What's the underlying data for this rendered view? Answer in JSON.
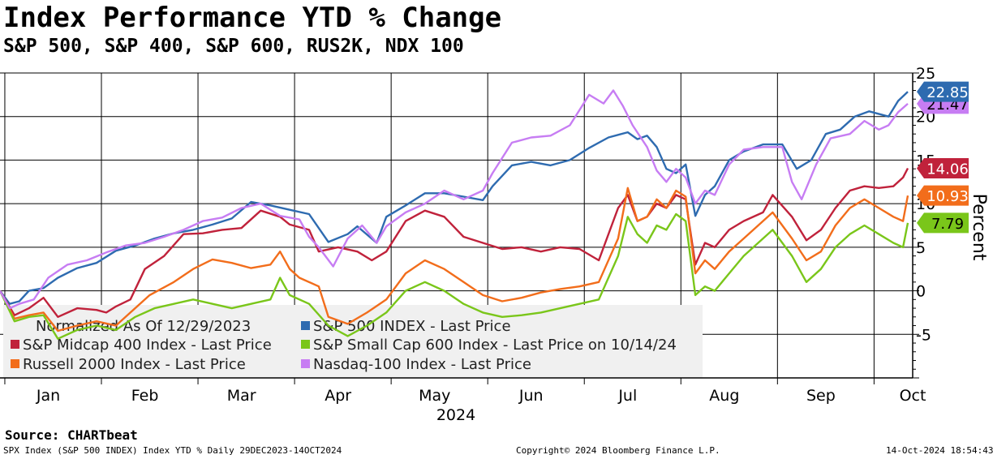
{
  "header": {
    "title": "Index Performance YTD % Change",
    "subtitle": "S&P 500, S&P 400, S&P 600, RUS2K, NDX 100"
  },
  "footer": {
    "source": "Source: CHARTbeat",
    "left": "SPX Index (S&P 500 INDEX) Index YTD %  Daily 29DEC2023-14OCT2024",
    "center": "Copyright© 2024 Bloomberg Finance L.P.",
    "right": "14-Oct-2024 18:54:43"
  },
  "chart_data": {
    "type": "line",
    "title": "Index Performance YTD % Change",
    "ylabel": "Percent",
    "xlabel": "2024",
    "ylim": [
      -10,
      25
    ],
    "yticks": [
      -5,
      0,
      5,
      10,
      15,
      20,
      25
    ],
    "ytick_labels": [
      "-5",
      "0",
      "5",
      "10",
      "15",
      "20",
      "25"
    ],
    "xlim": [
      0,
      9.45
    ],
    "xticks": [
      {
        "label": "Jan",
        "pos": 0.5
      },
      {
        "label": "Feb",
        "pos": 1.5
      },
      {
        "label": "Mar",
        "pos": 2.5
      },
      {
        "label": "Apr",
        "pos": 3.5
      },
      {
        "label": "May",
        "pos": 4.5
      },
      {
        "label": "Jun",
        "pos": 5.5
      },
      {
        "label": "Jul",
        "pos": 6.5
      },
      {
        "label": "Aug",
        "pos": 7.5
      },
      {
        "label": "Sep",
        "pos": 8.5
      },
      {
        "label": "Oct",
        "pos": 9.45
      }
    ],
    "grid": true,
    "legend_header": "Normalized As Of 12/29/2023",
    "legend_position": "bottom-left",
    "series": [
      {
        "name": "S&P 500 INDEX - Last Price",
        "color": "#2e6bb0",
        "last": "22.85",
        "points": [
          [
            0,
            0
          ],
          [
            0.1,
            -1.5
          ],
          [
            0.2,
            -1.2
          ],
          [
            0.3,
            0
          ],
          [
            0.45,
            0.3
          ],
          [
            0.6,
            1.5
          ],
          [
            0.8,
            2.6
          ],
          [
            1,
            3.2
          ],
          [
            1.2,
            4.6
          ],
          [
            1.4,
            5.2
          ],
          [
            1.6,
            6.0
          ],
          [
            1.8,
            6.6
          ],
          [
            2,
            7.0
          ],
          [
            2.2,
            7.6
          ],
          [
            2.4,
            8.3
          ],
          [
            2.6,
            10.2
          ],
          [
            2.8,
            9.8
          ],
          [
            3,
            9.3
          ],
          [
            3.2,
            8.8
          ],
          [
            3.4,
            5.6
          ],
          [
            3.6,
            6.5
          ],
          [
            3.7,
            7.4
          ],
          [
            3.9,
            5.5
          ],
          [
            4,
            8.5
          ],
          [
            4.2,
            9.8
          ],
          [
            4.4,
            11.2
          ],
          [
            4.6,
            11.2
          ],
          [
            4.8,
            10.8
          ],
          [
            5,
            10.4
          ],
          [
            5.1,
            12.0
          ],
          [
            5.3,
            14.4
          ],
          [
            5.5,
            14.8
          ],
          [
            5.7,
            14.4
          ],
          [
            5.9,
            15.0
          ],
          [
            6.1,
            16.4
          ],
          [
            6.3,
            17.6
          ],
          [
            6.5,
            18.2
          ],
          [
            6.6,
            17.4
          ],
          [
            6.7,
            17.8
          ],
          [
            6.8,
            16.5
          ],
          [
            6.9,
            14.0
          ],
          [
            7,
            13.5
          ],
          [
            7.1,
            14.5
          ],
          [
            7.2,
            8.6
          ],
          [
            7.3,
            11.0
          ],
          [
            7.4,
            12.0
          ],
          [
            7.55,
            15.0
          ],
          [
            7.7,
            16.0
          ],
          [
            7.9,
            16.8
          ],
          [
            8.1,
            16.8
          ],
          [
            8.25,
            14.0
          ],
          [
            8.4,
            15.0
          ],
          [
            8.55,
            18.0
          ],
          [
            8.7,
            18.5
          ],
          [
            8.85,
            20.0
          ],
          [
            9.0,
            20.6
          ],
          [
            9.2,
            20.0
          ],
          [
            9.3,
            21.8
          ],
          [
            9.4,
            22.85
          ]
        ]
      },
      {
        "name": "S&P Midcap 400 Index - Last Price",
        "color": "#c0223b",
        "last": "14.06",
        "points": [
          [
            0,
            0
          ],
          [
            0.15,
            -2.8
          ],
          [
            0.3,
            -2.0
          ],
          [
            0.45,
            -0.8
          ],
          [
            0.6,
            -3.0
          ],
          [
            0.8,
            -2.0
          ],
          [
            1.0,
            -2.2
          ],
          [
            1.1,
            -2.5
          ],
          [
            1.2,
            -1.8
          ],
          [
            1.35,
            -1.0
          ],
          [
            1.5,
            2.5
          ],
          [
            1.7,
            4.0
          ],
          [
            1.9,
            6.5
          ],
          [
            2.1,
            6.6
          ],
          [
            2.3,
            7.0
          ],
          [
            2.5,
            7.2
          ],
          [
            2.7,
            9.2
          ],
          [
            2.9,
            8.5
          ],
          [
            3.0,
            7.6
          ],
          [
            3.2,
            7.0
          ],
          [
            3.3,
            4.5
          ],
          [
            3.5,
            5.0
          ],
          [
            3.7,
            4.5
          ],
          [
            3.85,
            3.5
          ],
          [
            4.0,
            4.5
          ],
          [
            4.2,
            8.0
          ],
          [
            4.4,
            9.2
          ],
          [
            4.6,
            8.5
          ],
          [
            4.8,
            6.2
          ],
          [
            5,
            5.5
          ],
          [
            5.2,
            4.8
          ],
          [
            5.4,
            5.0
          ],
          [
            5.6,
            4.5
          ],
          [
            5.8,
            5.0
          ],
          [
            6.0,
            4.8
          ],
          [
            6.2,
            3.5
          ],
          [
            6.4,
            9.5
          ],
          [
            6.5,
            11.0
          ],
          [
            6.6,
            8.0
          ],
          [
            6.7,
            8.5
          ],
          [
            6.8,
            10.0
          ],
          [
            6.9,
            9.5
          ],
          [
            7.0,
            11.0
          ],
          [
            7.1,
            10.5
          ],
          [
            7.2,
            3.0
          ],
          [
            7.3,
            5.5
          ],
          [
            7.4,
            5.0
          ],
          [
            7.55,
            7.0
          ],
          [
            7.7,
            8.0
          ],
          [
            7.9,
            9.0
          ],
          [
            8.0,
            11.0
          ],
          [
            8.2,
            8.5
          ],
          [
            8.35,
            5.8
          ],
          [
            8.5,
            7.0
          ],
          [
            8.65,
            9.5
          ],
          [
            8.8,
            11.5
          ],
          [
            8.95,
            12.0
          ],
          [
            9.1,
            11.8
          ],
          [
            9.25,
            12.0
          ],
          [
            9.35,
            13.0
          ],
          [
            9.4,
            14.06
          ]
        ]
      },
      {
        "name": "Russell 2000 Index - Last Price",
        "color": "#f26d1b",
        "last": "10.93",
        "points": [
          [
            0,
            0
          ],
          [
            0.15,
            -3.2
          ],
          [
            0.3,
            -2.8
          ],
          [
            0.45,
            -2.5
          ],
          [
            0.6,
            -4.6
          ],
          [
            0.8,
            -4.0
          ],
          [
            1.0,
            -3.5
          ],
          [
            1.2,
            -4.0
          ],
          [
            1.35,
            -2.5
          ],
          [
            1.55,
            -0.5
          ],
          [
            1.8,
            1.0
          ],
          [
            2.0,
            2.5
          ],
          [
            2.2,
            3.6
          ],
          [
            2.4,
            3.2
          ],
          [
            2.6,
            2.6
          ],
          [
            2.8,
            3.0
          ],
          [
            2.9,
            4.5
          ],
          [
            3.0,
            2.5
          ],
          [
            3.1,
            1.5
          ],
          [
            3.3,
            0.5
          ],
          [
            3.4,
            -3.0
          ],
          [
            3.6,
            -3.8
          ],
          [
            3.8,
            -2.5
          ],
          [
            4.0,
            -1.0
          ],
          [
            4.2,
            2.0
          ],
          [
            4.4,
            3.5
          ],
          [
            4.6,
            2.5
          ],
          [
            4.8,
            1.0
          ],
          [
            5.0,
            -0.5
          ],
          [
            5.2,
            -1.2
          ],
          [
            5.4,
            -0.8
          ],
          [
            5.6,
            -0.2
          ],
          [
            5.8,
            0.2
          ],
          [
            6.0,
            0.5
          ],
          [
            6.2,
            1.0
          ],
          [
            6.4,
            6.0
          ],
          [
            6.5,
            11.8
          ],
          [
            6.6,
            8.0
          ],
          [
            6.7,
            8.5
          ],
          [
            6.8,
            10.5
          ],
          [
            6.9,
            9.5
          ],
          [
            7.0,
            11.5
          ],
          [
            7.1,
            10.8
          ],
          [
            7.2,
            2.0
          ],
          [
            7.3,
            3.5
          ],
          [
            7.4,
            2.5
          ],
          [
            7.55,
            4.5
          ],
          [
            7.7,
            6.0
          ],
          [
            7.9,
            8.0
          ],
          [
            8.0,
            9.0
          ],
          [
            8.2,
            6.0
          ],
          [
            8.35,
            3.5
          ],
          [
            8.5,
            4.5
          ],
          [
            8.65,
            7.5
          ],
          [
            8.8,
            9.5
          ],
          [
            8.95,
            10.5
          ],
          [
            9.1,
            9.5
          ],
          [
            9.25,
            8.5
          ],
          [
            9.35,
            8.0
          ],
          [
            9.4,
            10.93
          ]
        ]
      },
      {
        "name": "S&P Small Cap 600 Index - Last Price on 10/14/24",
        "color": "#7ac61a",
        "last": "7.79",
        "points": [
          [
            0,
            0
          ],
          [
            0.15,
            -3.5
          ],
          [
            0.3,
            -3.0
          ],
          [
            0.45,
            -2.8
          ],
          [
            0.6,
            -5.5
          ],
          [
            0.8,
            -4.5
          ],
          [
            1.0,
            -4.0
          ],
          [
            1.2,
            -4.5
          ],
          [
            1.4,
            -3.0
          ],
          [
            1.6,
            -2.0
          ],
          [
            1.8,
            -1.5
          ],
          [
            2.0,
            -1.0
          ],
          [
            2.2,
            -1.5
          ],
          [
            2.4,
            -2.0
          ],
          [
            2.6,
            -1.5
          ],
          [
            2.8,
            -1.0
          ],
          [
            2.9,
            1.5
          ],
          [
            3.0,
            -0.5
          ],
          [
            3.2,
            -1.5
          ],
          [
            3.4,
            -4.0
          ],
          [
            3.6,
            -5.2
          ],
          [
            3.8,
            -4.0
          ],
          [
            4.0,
            -2.5
          ],
          [
            4.2,
            0
          ],
          [
            4.4,
            1.0
          ],
          [
            4.6,
            0
          ],
          [
            4.8,
            -1.5
          ],
          [
            5.0,
            -2.5
          ],
          [
            5.2,
            -3.0
          ],
          [
            5.4,
            -2.8
          ],
          [
            5.6,
            -2.5
          ],
          [
            5.8,
            -2.0
          ],
          [
            6.0,
            -1.5
          ],
          [
            6.2,
            -1.0
          ],
          [
            6.4,
            4.0
          ],
          [
            6.5,
            8.5
          ],
          [
            6.6,
            6.5
          ],
          [
            6.7,
            5.5
          ],
          [
            6.8,
            7.5
          ],
          [
            6.9,
            7.0
          ],
          [
            7.0,
            8.8
          ],
          [
            7.1,
            8.0
          ],
          [
            7.2,
            -0.5
          ],
          [
            7.3,
            0.5
          ],
          [
            7.4,
            0
          ],
          [
            7.55,
            2.0
          ],
          [
            7.7,
            4.0
          ],
          [
            7.9,
            6.0
          ],
          [
            8.0,
            7.0
          ],
          [
            8.2,
            4.0
          ],
          [
            8.35,
            1.0
          ],
          [
            8.5,
            2.5
          ],
          [
            8.65,
            5.0
          ],
          [
            8.8,
            6.5
          ],
          [
            8.95,
            7.5
          ],
          [
            9.1,
            6.5
          ],
          [
            9.25,
            5.5
          ],
          [
            9.35,
            5.0
          ],
          [
            9.4,
            7.79
          ]
        ]
      },
      {
        "name": "Nasdaq-100 Index - Last Price",
        "color": "#c77df3",
        "last": "21.47",
        "points": [
          [
            0,
            0
          ],
          [
            0.1,
            -2.0
          ],
          [
            0.2,
            -1.5
          ],
          [
            0.35,
            -1.0
          ],
          [
            0.5,
            1.5
          ],
          [
            0.7,
            3.0
          ],
          [
            0.9,
            3.5
          ],
          [
            1.1,
            4.4
          ],
          [
            1.3,
            5.2
          ],
          [
            1.5,
            5.5
          ],
          [
            1.7,
            6.2
          ],
          [
            1.9,
            7.0
          ],
          [
            2.1,
            8.0
          ],
          [
            2.3,
            8.4
          ],
          [
            2.5,
            9.5
          ],
          [
            2.7,
            10.0
          ],
          [
            2.9,
            8.6
          ],
          [
            3.1,
            8.2
          ],
          [
            3.2,
            6.2
          ],
          [
            3.3,
            5.0
          ],
          [
            3.45,
            2.8
          ],
          [
            3.6,
            6.0
          ],
          [
            3.75,
            7.5
          ],
          [
            3.9,
            5.5
          ],
          [
            4.0,
            7.4
          ],
          [
            4.2,
            9.0
          ],
          [
            4.4,
            10.0
          ],
          [
            4.6,
            11.5
          ],
          [
            4.8,
            10.5
          ],
          [
            5.0,
            11.5
          ],
          [
            5.1,
            13.5
          ],
          [
            5.3,
            17.0
          ],
          [
            5.5,
            17.6
          ],
          [
            5.7,
            17.8
          ],
          [
            5.9,
            19.0
          ],
          [
            6.1,
            22.5
          ],
          [
            6.25,
            21.5
          ],
          [
            6.35,
            23.0
          ],
          [
            6.45,
            21.2
          ],
          [
            6.55,
            19.0
          ],
          [
            6.7,
            16.5
          ],
          [
            6.8,
            13.8
          ],
          [
            6.9,
            12.5
          ],
          [
            7.0,
            14.0
          ],
          [
            7.1,
            13.0
          ],
          [
            7.2,
            10.0
          ],
          [
            7.3,
            11.5
          ],
          [
            7.4,
            11.0
          ],
          [
            7.55,
            14.5
          ],
          [
            7.7,
            16.2
          ],
          [
            7.9,
            16.5
          ],
          [
            8.1,
            16.5
          ],
          [
            8.2,
            12.5
          ],
          [
            8.3,
            10.5
          ],
          [
            8.45,
            14.5
          ],
          [
            8.6,
            17.5
          ],
          [
            8.8,
            18.0
          ],
          [
            8.95,
            19.5
          ],
          [
            9.1,
            18.5
          ],
          [
            9.2,
            19.0
          ],
          [
            9.3,
            20.5
          ],
          [
            9.4,
            21.47
          ]
        ]
      }
    ]
  }
}
